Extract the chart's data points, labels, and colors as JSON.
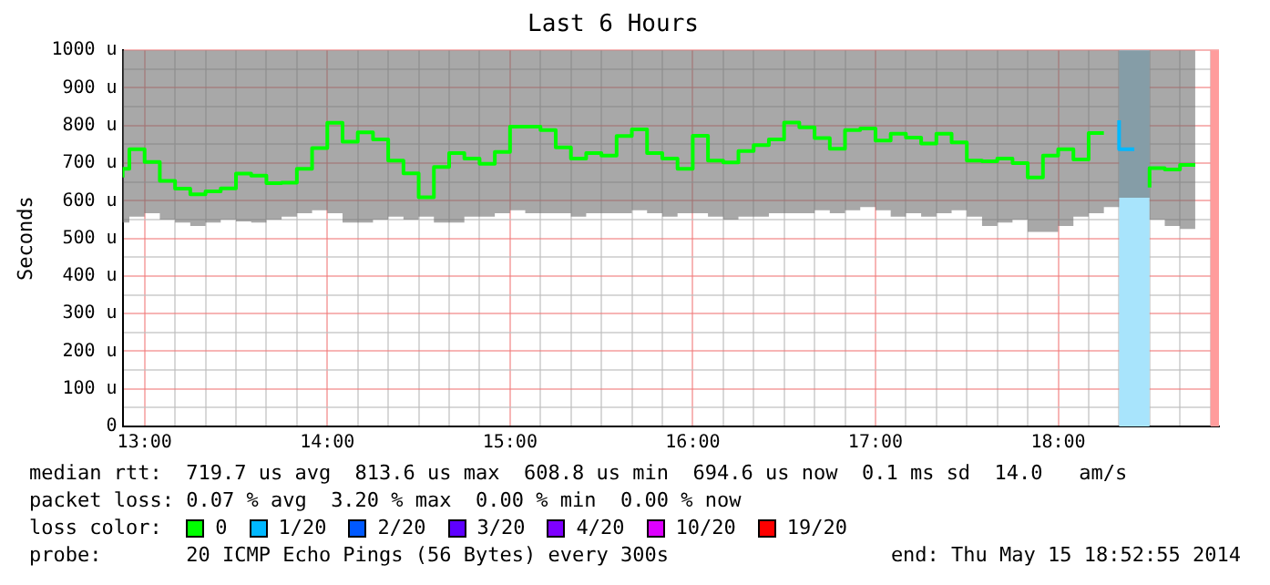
{
  "chart_data": {
    "type": "step",
    "title": "Last 6 Hours",
    "ylabel": "Seconds",
    "legend_title": "loss color:",
    "x": [
      12.88,
      12.9167,
      13,
      13.0833,
      13.1667,
      13.25,
      13.3333,
      13.4167,
      13.5,
      13.5833,
      13.6667,
      13.75,
      13.8333,
      13.9167,
      14,
      14.0833,
      14.1667,
      14.25,
      14.3333,
      14.4167,
      14.5,
      14.5833,
      14.6667,
      14.75,
      14.8333,
      14.9167,
      15,
      15.0833,
      15.1667,
      15.25,
      15.3333,
      15.4167,
      15.5,
      15.5833,
      15.6667,
      15.75,
      15.8333,
      15.9167,
      16,
      16.0833,
      16.1667,
      16.25,
      16.3333,
      16.4167,
      16.5,
      16.5833,
      16.6667,
      16.75,
      16.8333,
      16.9167,
      17,
      17.0833,
      17.1667,
      17.25,
      17.3333,
      17.4167,
      17.5,
      17.5833,
      17.6667,
      17.75,
      17.8333,
      17.9167,
      18,
      18.0833,
      18.1667,
      18.25,
      18.3333,
      18.4167,
      18.5,
      18.5833,
      18.6667,
      18.75
    ],
    "series": [
      {
        "name": "0",
        "color": "#00ff00",
        "values": [
          662,
          685,
          737,
          703,
          653,
          632,
          617,
          625,
          633,
          672,
          667,
          647,
          648,
          685,
          740,
          807,
          757,
          782,
          763,
          707,
          673,
          609,
          690,
          727,
          712,
          698,
          730,
          797,
          797,
          788,
          742,
          712,
          727,
          720,
          772,
          790,
          727,
          712,
          685,
          773,
          707,
          702,
          732,
          748,
          763,
          808,
          795,
          767,
          738,
          788,
          792,
          760,
          778,
          768,
          752,
          778,
          755,
          707,
          705,
          712,
          700,
          662,
          720,
          737,
          710,
          780,
          null,
          null,
          635,
          687,
          683,
          695
        ],
        "lower": [
          542,
          558,
          567,
          550,
          542,
          533,
          542,
          550,
          545,
          542,
          550,
          558,
          567,
          575,
          567,
          542,
          542,
          550,
          558,
          550,
          558,
          542,
          542,
          558,
          558,
          567,
          575,
          567,
          567,
          567,
          558,
          567,
          567,
          567,
          575,
          567,
          558,
          567,
          567,
          558,
          550,
          558,
          558,
          567,
          567,
          567,
          575,
          567,
          575,
          583,
          575,
          558,
          567,
          558,
          567,
          575,
          558,
          533,
          542,
          550,
          517,
          517,
          533,
          558,
          567,
          583,
          608,
          608,
          550,
          533,
          525,
          542
        ],
        "upper": [
          1000,
          1000,
          1000,
          1000,
          1000,
          1000,
          1000,
          1000,
          1000,
          1000,
          1000,
          1000,
          1000,
          1000,
          1000,
          1000,
          1000,
          1000,
          1000,
          1000,
          1000,
          1000,
          1000,
          1000,
          1000,
          1000,
          1000,
          1000,
          1000,
          1000,
          1000,
          1000,
          1000,
          1000,
          1000,
          1000,
          1000,
          1000,
          1000,
          1000,
          1000,
          1000,
          1000,
          1000,
          1000,
          1000,
          1000,
          1000,
          1000,
          1000,
          1000,
          1000,
          1000,
          1000,
          1000,
          1000,
          1000,
          1000,
          1000,
          1000,
          1000,
          1000,
          1000,
          1000,
          1000,
          1000,
          1000,
          1000,
          1000,
          1000,
          1000,
          1000
        ]
      },
      {
        "name": "1/20",
        "color": "#00b8ff",
        "values": [
          null,
          null,
          null,
          null,
          null,
          null,
          null,
          null,
          null,
          null,
          null,
          null,
          null,
          null,
          null,
          null,
          null,
          null,
          null,
          null,
          null,
          null,
          null,
          null,
          null,
          null,
          null,
          null,
          null,
          null,
          null,
          null,
          null,
          null,
          null,
          null,
          null,
          null,
          null,
          null,
          null,
          null,
          null,
          null,
          null,
          null,
          null,
          null,
          null,
          null,
          null,
          null,
          null,
          null,
          null,
          null,
          null,
          null,
          null,
          null,
          null,
          null,
          null,
          null,
          null,
          null,
          814,
          737,
          null,
          null,
          null,
          null
        ]
      },
      {
        "name": "2/20",
        "color": "#0059ff",
        "values": [
          null,
          null,
          null,
          null,
          null,
          null,
          null,
          null,
          null,
          null,
          null,
          null,
          null,
          null,
          null,
          null,
          null,
          null,
          null,
          null,
          null,
          null,
          null,
          null,
          null,
          null,
          null,
          null,
          null,
          null,
          null,
          null,
          null,
          null,
          null,
          null,
          null,
          null,
          null,
          null,
          null,
          null,
          null,
          null,
          null,
          null,
          null,
          null,
          null,
          null,
          null,
          null,
          null,
          null,
          null,
          null,
          null,
          null,
          null,
          null,
          null,
          null,
          null,
          null,
          null,
          null,
          null,
          null,
          null,
          null,
          null,
          null
        ]
      },
      {
        "name": "3/20",
        "color": "#5e00ff",
        "values": [
          null,
          null,
          null,
          null,
          null,
          null,
          null,
          null,
          null,
          null,
          null,
          null,
          null,
          null,
          null,
          null,
          null,
          null,
          null,
          null,
          null,
          null,
          null,
          null,
          null,
          null,
          null,
          null,
          null,
          null,
          null,
          null,
          null,
          null,
          null,
          null,
          null,
          null,
          null,
          null,
          null,
          null,
          null,
          null,
          null,
          null,
          null,
          null,
          null,
          null,
          null,
          null,
          null,
          null,
          null,
          null,
          null,
          null,
          null,
          null,
          null,
          null,
          null,
          null,
          null,
          null,
          null,
          null,
          null,
          null,
          null,
          null
        ]
      },
      {
        "name": "4/20",
        "color": "#7e00ff",
        "values": [
          null,
          null,
          null,
          null,
          null,
          null,
          null,
          null,
          null,
          null,
          null,
          null,
          null,
          null,
          null,
          null,
          null,
          null,
          null,
          null,
          null,
          null,
          null,
          null,
          null,
          null,
          null,
          null,
          null,
          null,
          null,
          null,
          null,
          null,
          null,
          null,
          null,
          null,
          null,
          null,
          null,
          null,
          null,
          null,
          null,
          null,
          null,
          null,
          null,
          null,
          null,
          null,
          null,
          null,
          null,
          null,
          null,
          null,
          null,
          null,
          null,
          null,
          null,
          null,
          null,
          null,
          null,
          null,
          null,
          null,
          null,
          null
        ]
      },
      {
        "name": "10/20",
        "color": "#dd00ff",
        "values": [
          null,
          null,
          null,
          null,
          null,
          null,
          null,
          null,
          null,
          null,
          null,
          null,
          null,
          null,
          null,
          null,
          null,
          null,
          null,
          null,
          null,
          null,
          null,
          null,
          null,
          null,
          null,
          null,
          null,
          null,
          null,
          null,
          null,
          null,
          null,
          null,
          null,
          null,
          null,
          null,
          null,
          null,
          null,
          null,
          null,
          null,
          null,
          null,
          null,
          null,
          null,
          null,
          null,
          null,
          null,
          null,
          null,
          null,
          null,
          null,
          null,
          null,
          null,
          null,
          null,
          null,
          null,
          null,
          null,
          null,
          null,
          null
        ]
      },
      {
        "name": "19/20",
        "color": "#ff0000",
        "values": [
          null,
          null,
          null,
          null,
          null,
          null,
          null,
          null,
          null,
          null,
          null,
          null,
          null,
          null,
          null,
          null,
          null,
          null,
          null,
          null,
          null,
          null,
          null,
          null,
          null,
          null,
          null,
          null,
          null,
          null,
          null,
          null,
          null,
          null,
          null,
          null,
          null,
          null,
          null,
          null,
          null,
          null,
          null,
          null,
          null,
          null,
          null,
          null,
          null,
          null,
          null,
          null,
          null,
          null,
          null,
          null,
          null,
          null,
          null,
          null,
          null,
          null,
          null,
          null,
          null,
          null,
          null,
          null,
          null,
          null,
          null,
          null
        ]
      }
    ],
    "xlim": [
      12.88,
      18.88
    ],
    "xticks": [
      {
        "value": 13,
        "label": "13:00"
      },
      {
        "value": 13.1667,
        "label": null
      },
      {
        "value": 13.3333,
        "label": null
      },
      {
        "value": 13.5,
        "label": null
      },
      {
        "value": 13.6667,
        "label": null
      },
      {
        "value": 13.8333,
        "label": null
      },
      {
        "value": 14,
        "label": "14:00"
      },
      {
        "value": 14.1667,
        "label": null
      },
      {
        "value": 14.3333,
        "label": null
      },
      {
        "value": 14.5,
        "label": null
      },
      {
        "value": 14.6667,
        "label": null
      },
      {
        "value": 14.8333,
        "label": null
      },
      {
        "value": 15,
        "label": "15:00"
      },
      {
        "value": 15.1667,
        "label": null
      },
      {
        "value": 15.3333,
        "label": null
      },
      {
        "value": 15.5,
        "label": null
      },
      {
        "value": 15.6667,
        "label": null
      },
      {
        "value": 15.8333,
        "label": null
      },
      {
        "value": 16,
        "label": "16:00"
      },
      {
        "value": 16.1667,
        "label": null
      },
      {
        "value": 16.3333,
        "label": null
      },
      {
        "value": 16.5,
        "label": null
      },
      {
        "value": 16.6667,
        "label": null
      },
      {
        "value": 16.8333,
        "label": null
      },
      {
        "value": 17,
        "label": "17:00"
      },
      {
        "value": 17.1667,
        "label": null
      },
      {
        "value": 17.3333,
        "label": null
      },
      {
        "value": 17.5,
        "label": null
      },
      {
        "value": 17.6667,
        "label": null
      },
      {
        "value": 17.8333,
        "label": null
      },
      {
        "value": 18,
        "label": "18:00"
      },
      {
        "value": 18.1667,
        "label": null
      },
      {
        "value": 18.3333,
        "label": null
      },
      {
        "value": 18.5,
        "label": null
      },
      {
        "value": 18.6667,
        "label": null
      },
      {
        "value": 18.8333,
        "label": null
      }
    ],
    "ylim": [
      0,
      1000
    ],
    "yticks": [
      0,
      {
        "value": 50,
        "label": null
      },
      {
        "value": 100,
        "label": "100 u"
      },
      {
        "value": 150,
        "label": null
      },
      {
        "value": 200,
        "label": "200 u"
      },
      {
        "value": 250,
        "label": null
      },
      {
        "value": 300,
        "label": "300 u"
      },
      {
        "value": 350,
        "label": null
      },
      {
        "value": 400,
        "label": "400 u"
      },
      {
        "value": 450,
        "label": null
      },
      {
        "value": 500,
        "label": "500 u"
      },
      {
        "value": 550,
        "label": null
      },
      {
        "value": 600,
        "label": "600 u"
      },
      {
        "value": 650,
        "label": null
      },
      {
        "value": 700,
        "label": "700 u"
      },
      {
        "value": 750,
        "label": null
      },
      {
        "value": 800,
        "label": "800 u"
      },
      {
        "value": 850,
        "label": null
      },
      {
        "value": 900,
        "label": "900 u"
      },
      {
        "value": 950,
        "label": null
      },
      {
        "value": 1000,
        "label": "1000 u"
      }
    ],
    "bands": [
      {
        "axis": "x",
        "from": 18.3333,
        "to": 18.5,
        "color": "#a8e4fc"
      },
      {
        "axis": "x",
        "from": 18.8333,
        "to": 18.88,
        "color": "#ff9c9c"
      }
    ],
    "grid": true,
    "legend": "bottom",
    "annotations": [
      "median rtt:  719.7 us avg  813.6 us max  608.8 us min  694.6 us now  0.1 ms sd  14.0   am/s",
      "packet loss: 0.07 % avg  3.20 % max  0.00 % min  0.00 % now",
      "probe:       20 ICMP Echo Pings (56 Bytes) every 300s",
      "end: Thu May 15 18:52:55 2014"
    ]
  }
}
